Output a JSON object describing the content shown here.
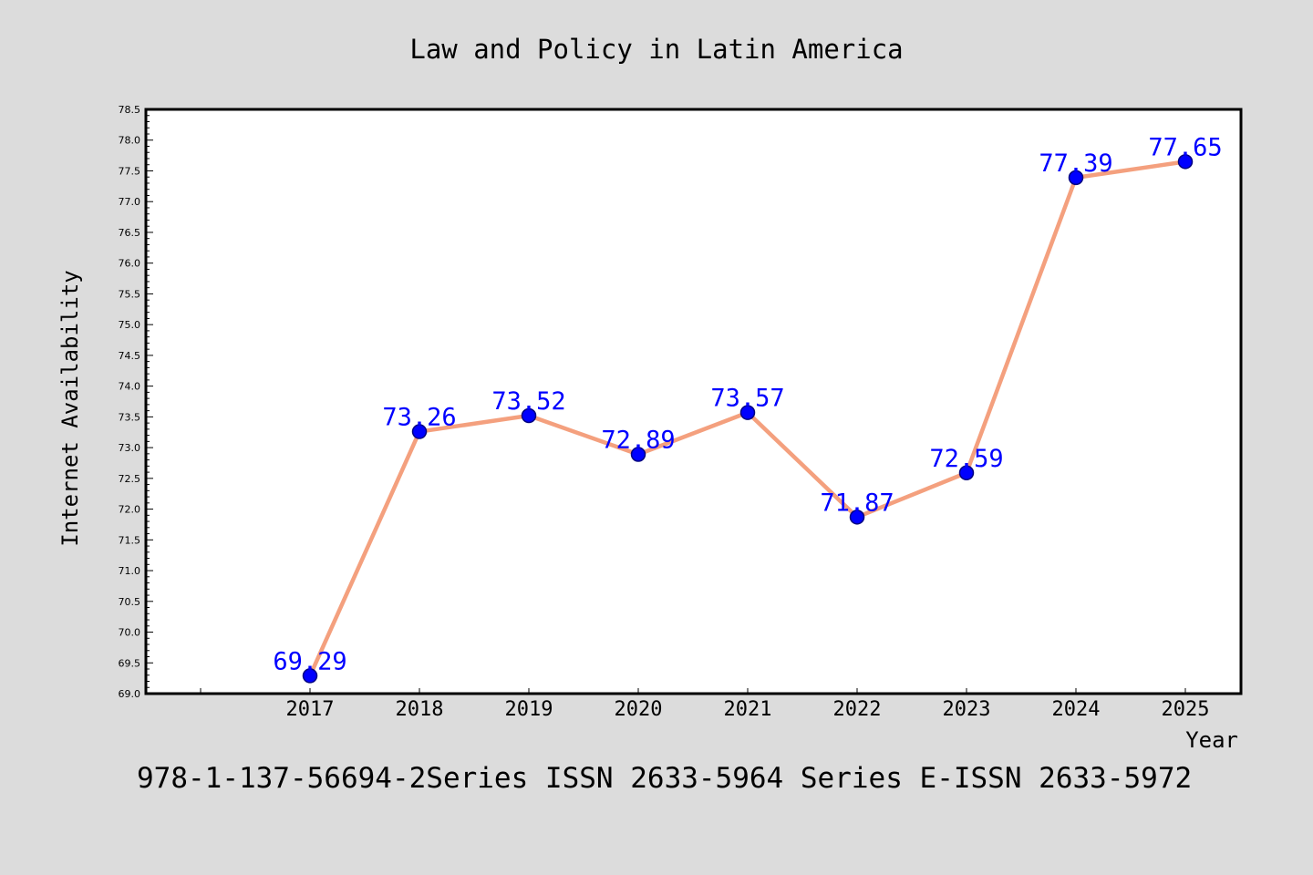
{
  "chart_data": {
    "type": "line",
    "title": "Law and Policy in Latin America",
    "xlabel": "Year",
    "ylabel": "Internet Availability",
    "footer": "978-1-137-56694-2Series ISSN 2633-5964 Series E-ISSN 2633-5972",
    "categories": [
      "2017",
      "2018",
      "2019",
      "2020",
      "2021",
      "2022",
      "2023",
      "2024",
      "2025"
    ],
    "series": [
      {
        "values": [
          69.29,
          73.26,
          73.52,
          72.89,
          73.57,
          71.87,
          72.59,
          77.39,
          77.65
        ],
        "labels": [
          "69.29",
          "73.26",
          "73.52",
          "72.89",
          "73.57",
          "71.87",
          "72.59",
          "77.39",
          "77.65"
        ]
      }
    ],
    "ylim": [
      69.0,
      78.5
    ],
    "yticks": [
      "69.0",
      "69.5",
      "70.0",
      "70.5",
      "71.0",
      "71.5",
      "72.0",
      "72.5",
      "73.0",
      "73.5",
      "74.0",
      "74.5",
      "75.0",
      "75.5",
      "76.0",
      "76.5",
      "77.0",
      "77.5",
      "78.0",
      "78.5"
    ],
    "grid": false,
    "colors": {
      "line": "#f4a07e",
      "marker": "#0000ff",
      "marker_edge": "#000080",
      "data_label": "#0000ff",
      "background": "#dcdcdc",
      "plot_background": "#ffffff"
    }
  }
}
